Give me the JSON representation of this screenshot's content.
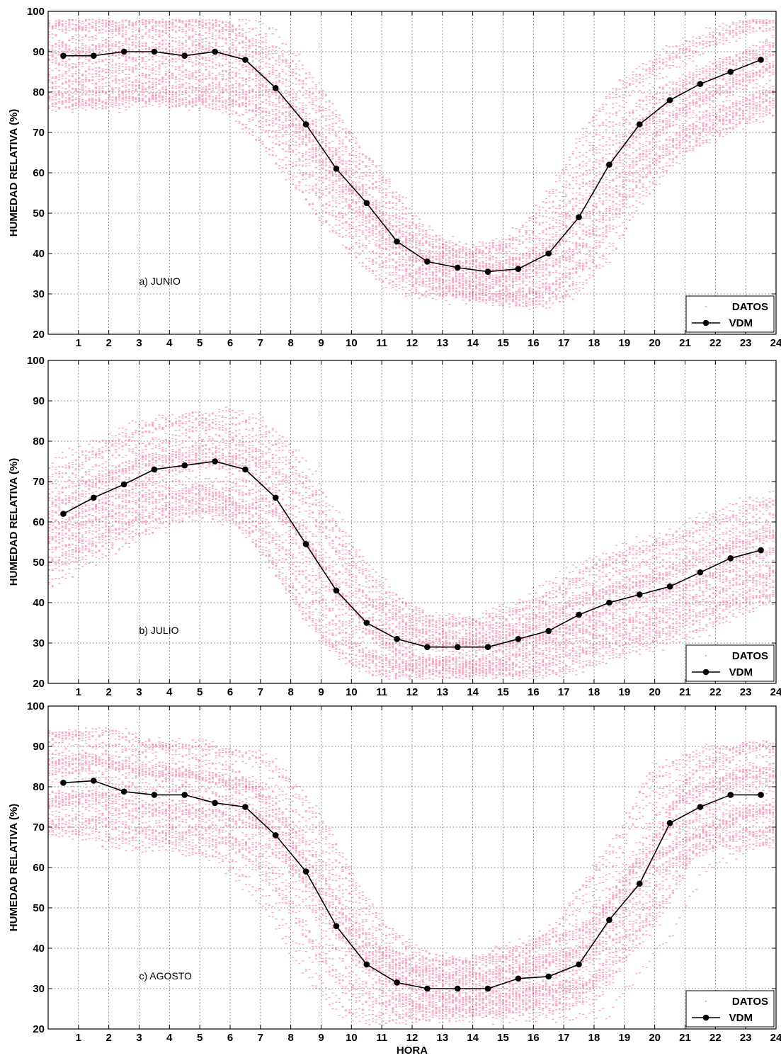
{
  "figure": {
    "xlabel": "HORA",
    "ylabel": "HUMEDAD RELATIVA (%)",
    "colors": {
      "datos": "#f7a6c6",
      "vdm": "#000000",
      "grid": "#555555"
    }
  },
  "chart_data": [
    {
      "type": "line",
      "annotation": "a) JUNIO",
      "xlim": [
        0,
        24
      ],
      "ylim": [
        20,
        100
      ],
      "x_ticks": [
        1,
        2,
        3,
        4,
        5,
        6,
        7,
        8,
        9,
        10,
        11,
        12,
        13,
        14,
        15,
        16,
        17,
        18,
        19,
        20,
        21,
        22,
        23,
        24
      ],
      "y_ticks": [
        20,
        30,
        40,
        50,
        60,
        70,
        80,
        90,
        100
      ],
      "grid": true,
      "legend": {
        "position": "bottom-right",
        "entries": [
          "DATOS",
          "VDM"
        ]
      },
      "series": [
        {
          "name": "VDM",
          "x": [
            0.5,
            1.5,
            2.5,
            3.5,
            4.5,
            5.5,
            6.5,
            7.5,
            8.5,
            9.5,
            10.5,
            11.5,
            12.5,
            13.5,
            14.5,
            15.5,
            16.5,
            17.5,
            18.5,
            19.5,
            20.5,
            21.5,
            22.5,
            23.5
          ],
          "y": [
            89,
            89,
            90,
            90,
            89,
            90,
            88,
            81,
            72,
            61,
            52.5,
            43,
            38,
            36.5,
            35.5,
            36.2,
            40,
            49,
            62,
            72,
            78,
            82,
            85,
            88
          ]
        },
        {
          "name": "DATOS",
          "kind": "scatter",
          "description_ranges": [
            [
              0,
              24
            ]
          ]
        }
      ]
    },
    {
      "type": "line",
      "annotation": "b) JULIO",
      "xlim": [
        0,
        24
      ],
      "ylim": [
        20,
        100
      ],
      "x_ticks": [
        1,
        2,
        3,
        4,
        5,
        6,
        7,
        8,
        9,
        10,
        11,
        12,
        13,
        14,
        15,
        16,
        17,
        18,
        19,
        20,
        21,
        22,
        23,
        24
      ],
      "y_ticks": [
        20,
        30,
        40,
        50,
        60,
        70,
        80,
        90,
        100
      ],
      "grid": true,
      "legend": {
        "position": "bottom-right",
        "entries": [
          "DATOS",
          "VDM"
        ]
      },
      "series": [
        {
          "name": "VDM",
          "x": [
            0.5,
            1.5,
            2.5,
            3.5,
            4.5,
            5.5,
            6.5,
            7.5,
            8.5,
            9.5,
            10.5,
            11.5,
            12.5,
            13.5,
            14.5,
            15.5,
            16.5,
            17.5,
            18.5,
            19.5,
            20.5,
            21.5,
            22.5,
            23.5
          ],
          "y": [
            62,
            66,
            69.3,
            73,
            74,
            75,
            73,
            66,
            54.5,
            43,
            35,
            31,
            29,
            29,
            29,
            31,
            33,
            37,
            40,
            42,
            44,
            47.5,
            51,
            53
          ]
        },
        {
          "name": "DATOS",
          "kind": "scatter"
        }
      ]
    },
    {
      "type": "line",
      "annotation": "c) AGOSTO",
      "xlim": [
        0,
        24
      ],
      "ylim": [
        20,
        100
      ],
      "x_ticks": [
        1,
        2,
        3,
        4,
        5,
        6,
        7,
        8,
        9,
        10,
        11,
        12,
        13,
        14,
        15,
        16,
        17,
        18,
        19,
        20,
        21,
        22,
        23,
        24
      ],
      "y_ticks": [
        20,
        30,
        40,
        50,
        60,
        70,
        80,
        90,
        100
      ],
      "grid": true,
      "legend": {
        "position": "bottom-right",
        "entries": [
          "DATOS",
          "VDM"
        ]
      },
      "series": [
        {
          "name": "VDM",
          "x": [
            0.5,
            1.5,
            2.5,
            3.5,
            4.5,
            5.5,
            6.5,
            7.5,
            8.5,
            9.5,
            10.5,
            11.5,
            12.5,
            13.5,
            14.5,
            15.5,
            16.5,
            17.5,
            18.5,
            19.5,
            20.5,
            21.5,
            22.5,
            23.5
          ],
          "y": [
            81,
            81.5,
            78.8,
            78,
            78,
            76,
            75,
            68,
            59,
            45.5,
            36,
            31.5,
            30,
            30,
            30,
            32.5,
            33,
            36,
            47,
            56,
            71,
            75,
            78,
            78
          ]
        },
        {
          "name": "DATOS",
          "kind": "scatter"
        }
      ]
    }
  ]
}
